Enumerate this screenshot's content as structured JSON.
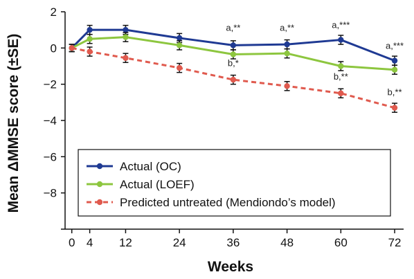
{
  "chart_data": {
    "type": "line",
    "xlabel": "Weeks",
    "ylabel": "Mean ΔMMSE score (±SE)",
    "x_ticks": [
      "0",
      "4",
      "12",
      "24",
      "36",
      "48",
      "60",
      "72"
    ],
    "y_ticks": [
      "2",
      "0",
      "−2",
      "−4",
      "−6",
      "−8"
    ],
    "xlim": [
      -1.5,
      74
    ],
    "ylim": [
      -10,
      2
    ],
    "legend_position": "bottom-left",
    "series": [
      {
        "name": "Actual (OC)",
        "color": "#1f3a93",
        "style": "solid",
        "x": [
          0,
          4,
          12,
          24,
          36,
          48,
          60,
          72
        ],
        "y": [
          0,
          1.0,
          1.0,
          0.55,
          0.15,
          0.2,
          0.45,
          -0.7
        ],
        "se": [
          0.2,
          0.25,
          0.25,
          0.25,
          0.25,
          0.25,
          0.25,
          0.25
        ]
      },
      {
        "name": "Actual (LOEF)",
        "color": "#8dc63f",
        "style": "solid",
        "x": [
          0,
          4,
          12,
          24,
          36,
          48,
          60,
          72
        ],
        "y": [
          0,
          0.5,
          0.6,
          0.15,
          -0.35,
          -0.3,
          -1.0,
          -1.2
        ],
        "se": [
          0.2,
          0.25,
          0.25,
          0.25,
          0.25,
          0.25,
          0.25,
          0.25
        ]
      },
      {
        "name": "Predicted untreated (Mendiondo’s model)",
        "color": "#e05a4e",
        "style": "dashed",
        "x": [
          0,
          4,
          12,
          24,
          36,
          48,
          60,
          72
        ],
        "y": [
          0,
          -0.2,
          -0.55,
          -1.1,
          -1.75,
          -2.1,
          -2.5,
          -3.3
        ],
        "se": [
          0.2,
          0.25,
          0.25,
          0.25,
          0.25,
          0.25,
          0.25,
          0.25
        ]
      }
    ],
    "annotations": [
      {
        "text": "a,**",
        "x": 36,
        "y": 0.95
      },
      {
        "text": "a,**",
        "x": 48,
        "y": 0.95
      },
      {
        "text": "a,***",
        "x": 60,
        "y": 1.1
      },
      {
        "text": "a,***",
        "x": 72,
        "y": -0.05
      },
      {
        "text": "b,*",
        "x": 36,
        "y": -1.0
      },
      {
        "text": "b,**",
        "x": 60,
        "y": -1.75
      },
      {
        "text": "b,**",
        "x": 72,
        "y": -2.6
      }
    ]
  }
}
